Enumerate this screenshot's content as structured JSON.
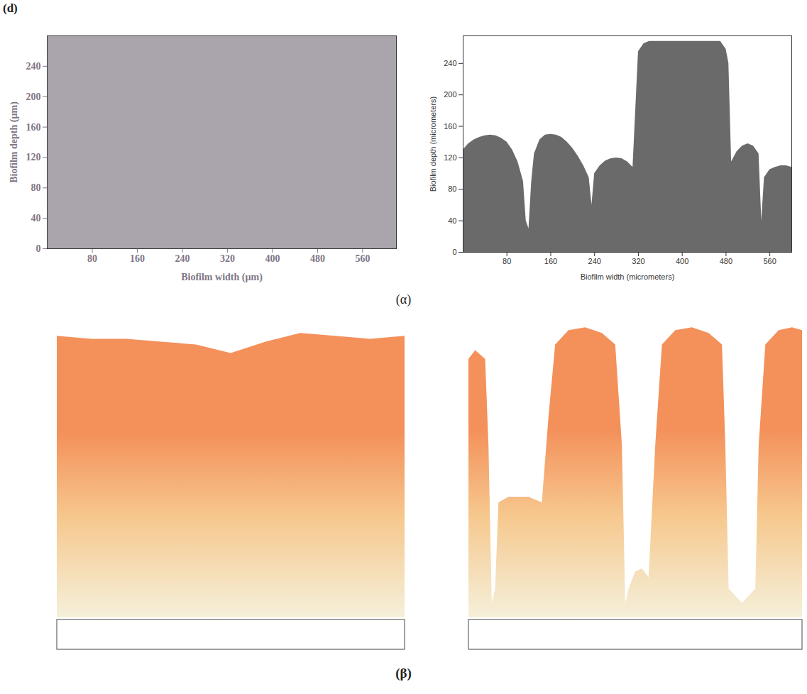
{
  "figure": {
    "panel_letter": "(d)",
    "row_labels": [
      "(α)",
      "(β)"
    ]
  },
  "chart_data": [
    {
      "type": "area",
      "color": "#aaa5ad",
      "x_label": "Biofilm width (µm)",
      "y_label": "Biofilm depth (µm)",
      "x": [
        0,
        620
      ],
      "values": [
        280,
        280
      ],
      "xlim": [
        0,
        620
      ],
      "ylim": [
        0,
        280
      ],
      "xticks": [
        80,
        160,
        240,
        320,
        400,
        480,
        560
      ],
      "yticks": [
        0,
        40,
        80,
        120,
        160,
        200,
        240
      ]
    },
    {
      "type": "area",
      "color": "#6a6a6a",
      "x_label": "Biofilm width (micrometers)",
      "y_label": "Biofilm depth (micrometers)",
      "x": [
        0,
        10,
        20,
        30,
        40,
        50,
        60,
        70,
        80,
        90,
        100,
        110,
        115,
        120,
        125,
        130,
        140,
        150,
        160,
        170,
        180,
        190,
        200,
        210,
        220,
        230,
        235,
        240,
        250,
        260,
        270,
        280,
        290,
        300,
        310,
        320,
        330,
        340,
        350,
        360,
        370,
        380,
        390,
        400,
        410,
        420,
        430,
        440,
        450,
        460,
        470,
        480,
        485,
        490,
        500,
        510,
        520,
        530,
        540,
        545,
        550,
        560,
        570,
        580,
        590,
        600
      ],
      "values": [
        130,
        138,
        143,
        146,
        148,
        149,
        148,
        145,
        140,
        130,
        115,
        90,
        40,
        30,
        90,
        125,
        143,
        149,
        150,
        149,
        146,
        140,
        132,
        122,
        110,
        95,
        60,
        100,
        110,
        116,
        119,
        120,
        119,
        115,
        108,
        255,
        265,
        268,
        268,
        268,
        268,
        268,
        268,
        268,
        268,
        268,
        268,
        268,
        268,
        268,
        268,
        258,
        240,
        115,
        128,
        135,
        138,
        135,
        125,
        40,
        95,
        105,
        108,
        110,
        110,
        108
      ],
      "xlim": [
        0,
        600
      ],
      "ylim": [
        0,
        275
      ],
      "xticks": [
        80,
        160,
        240,
        320,
        400,
        480,
        560
      ],
      "yticks": [
        0,
        40,
        80,
        120,
        160,
        200,
        240
      ]
    },
    {
      "type": "area",
      "color": "#f4905a",
      "tick_labels": false,
      "x": [
        0,
        10,
        20,
        30,
        40,
        50,
        60,
        70,
        80,
        90,
        100
      ],
      "values": [
        98,
        97,
        97,
        96,
        95,
        92,
        96,
        99,
        98,
        97,
        98
      ],
      "xlim": [
        0,
        100
      ],
      "ylim": [
        0,
        105
      ]
    },
    {
      "type": "area",
      "color": "#f4905a",
      "tick_labels": false,
      "x": [
        0,
        2,
        5,
        6,
        7,
        8,
        9,
        12,
        18,
        22,
        24,
        26,
        30,
        35,
        40,
        44,
        46,
        47,
        48,
        50,
        52,
        54,
        56,
        58,
        62,
        67,
        72,
        76,
        77,
        78,
        82,
        86,
        87,
        89,
        93,
        97,
        100
      ],
      "values": [
        90,
        93,
        90,
        60,
        5,
        10,
        40,
        42,
        42,
        40,
        70,
        95,
        100,
        101,
        99,
        95,
        60,
        5,
        10,
        16,
        17,
        14,
        60,
        95,
        100,
        101,
        99,
        95,
        60,
        10,
        5,
        10,
        60,
        95,
        100,
        101,
        100
      ],
      "xlim": [
        0,
        100
      ],
      "ylim": [
        0,
        105
      ]
    }
  ]
}
